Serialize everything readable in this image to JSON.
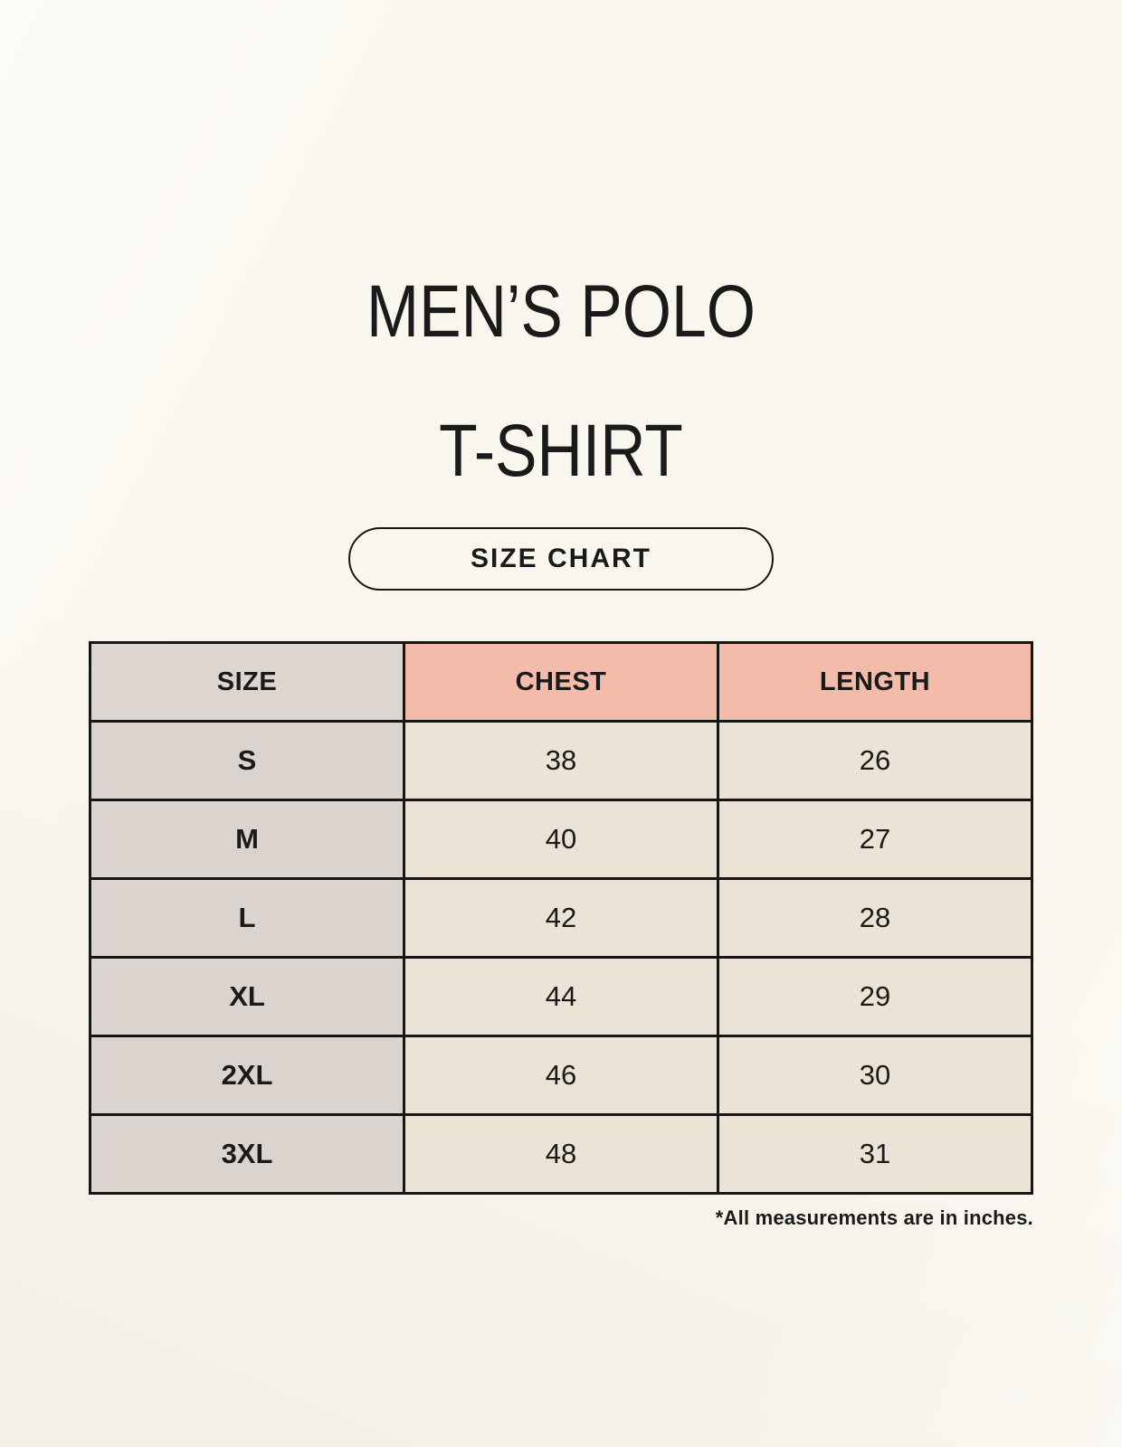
{
  "header": {
    "title_line1": "MEN’S POLO",
    "title_line2": "T-SHIRT",
    "badge_label": "SIZE CHART"
  },
  "chart_data": {
    "type": "table",
    "title": "MEN’S POLO T-SHIRT",
    "subtitle": "SIZE CHART",
    "columns": [
      "SIZE",
      "CHEST",
      "LENGTH"
    ],
    "rows": [
      {
        "size": "S",
        "chest": "38",
        "length": "26"
      },
      {
        "size": "M",
        "chest": "40",
        "length": "27"
      },
      {
        "size": "L",
        "chest": "42",
        "length": "28"
      },
      {
        "size": "XL",
        "chest": "44",
        "length": "29"
      },
      {
        "size": "2XL",
        "chest": "46",
        "length": "30"
      },
      {
        "size": "3XL",
        "chest": "48",
        "length": "31"
      }
    ],
    "units": "inches",
    "footnote": "*All measurements are in inches."
  },
  "colors": {
    "page_background": "#f9f6ee",
    "size_header_bg": "#ddd6d0",
    "measure_header_bg": "#f2bbaa",
    "size_cell_bg": "#dbd4ce",
    "data_cell_bg": "#eae3d6",
    "table_border": "#161616",
    "text": "#1a1a1a"
  }
}
